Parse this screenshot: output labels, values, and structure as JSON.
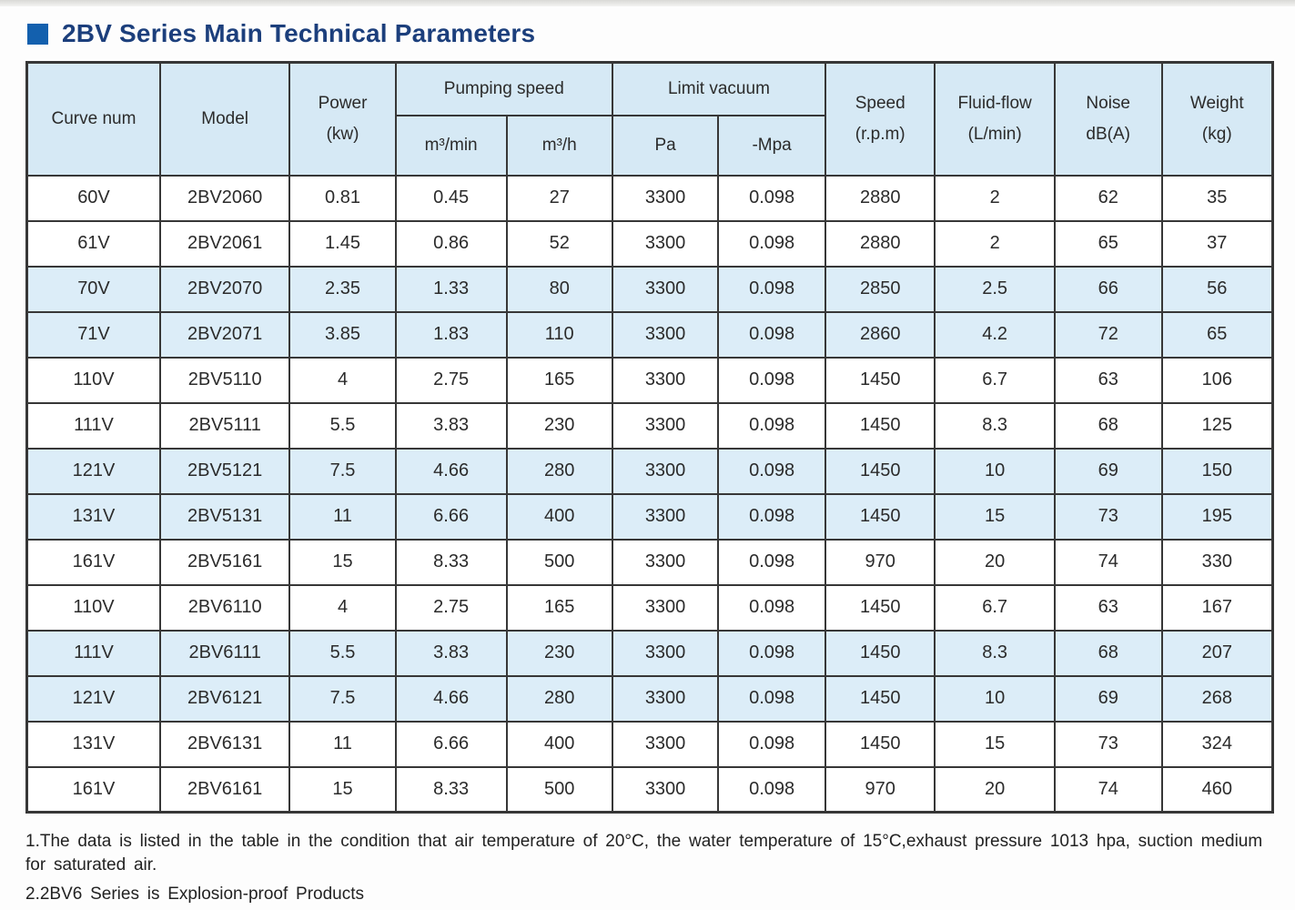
{
  "page": {
    "title": "2BV Series Main Technical Parameters"
  },
  "colors": {
    "title_text": "#1c3f7c",
    "title_bullet": "#1360ae",
    "header_bg": "#d6e9f5",
    "stripe_bg": "#dcedf8",
    "border": "#373737"
  },
  "table": {
    "header": {
      "curve_num": "Curve num",
      "model": "Model",
      "power_line1": "Power",
      "power_line2": "(kw)",
      "pumping_speed": "Pumping speed",
      "pumping_units": [
        "m³/min",
        "m³/h"
      ],
      "limit_vacuum": "Limit vacuum",
      "vacuum_units": [
        "Pa",
        "-Mpa"
      ],
      "speed_line1": "Speed",
      "speed_line2": "(r.p.m)",
      "fluid_line1": "Fluid-flow",
      "fluid_line2": "(L/min)",
      "noise_line1": "Noise",
      "noise_line2": "dB(A)",
      "weight_line1": "Weight",
      "weight_line2": "(kg)"
    },
    "rows": [
      [
        "60V",
        "2BV2060",
        "0.81",
        "0.45",
        "27",
        "3300",
        "0.098",
        "2880",
        "2",
        "62",
        "35"
      ],
      [
        "61V",
        "2BV2061",
        "1.45",
        "0.86",
        "52",
        "3300",
        "0.098",
        "2880",
        "2",
        "65",
        "37"
      ],
      [
        "70V",
        "2BV2070",
        "2.35",
        "1.33",
        "80",
        "3300",
        "0.098",
        "2850",
        "2.5",
        "66",
        "56"
      ],
      [
        "71V",
        "2BV2071",
        "3.85",
        "1.83",
        "110",
        "3300",
        "0.098",
        "2860",
        "4.2",
        "72",
        "65"
      ],
      [
        "110V",
        "2BV5110",
        "4",
        "2.75",
        "165",
        "3300",
        "0.098",
        "1450",
        "6.7",
        "63",
        "106"
      ],
      [
        "111V",
        "2BV5111",
        "5.5",
        "3.83",
        "230",
        "3300",
        "0.098",
        "1450",
        "8.3",
        "68",
        "125"
      ],
      [
        "121V",
        "2BV5121",
        "7.5",
        "4.66",
        "280",
        "3300",
        "0.098",
        "1450",
        "10",
        "69",
        "150"
      ],
      [
        "131V",
        "2BV5131",
        "11",
        "6.66",
        "400",
        "3300",
        "0.098",
        "1450",
        "15",
        "73",
        "195"
      ],
      [
        "161V",
        "2BV5161",
        "15",
        "8.33",
        "500",
        "3300",
        "0.098",
        "970",
        "20",
        "74",
        "330"
      ],
      [
        "110V",
        "2BV6110",
        "4",
        "2.75",
        "165",
        "3300",
        "0.098",
        "1450",
        "6.7",
        "63",
        "167"
      ],
      [
        "111V",
        "2BV6111",
        "5.5",
        "3.83",
        "230",
        "3300",
        "0.098",
        "1450",
        "8.3",
        "68",
        "207"
      ],
      [
        "121V",
        "2BV6121",
        "7.5",
        "4.66",
        "280",
        "3300",
        "0.098",
        "1450",
        "10",
        "69",
        "268"
      ],
      [
        "131V",
        "2BV6131",
        "11",
        "6.66",
        "400",
        "3300",
        "0.098",
        "1450",
        "15",
        "73",
        "324"
      ],
      [
        "161V",
        "2BV6161",
        "15",
        "8.33",
        "500",
        "3300",
        "0.098",
        "970",
        "20",
        "74",
        "460"
      ]
    ]
  },
  "notes": [
    "1.The data is listed in the table in the condition that air temperature of 20°C, the water temperature of 15°C,exhaust pressure 1013 hpa, suction medium for saturated air.",
    "2.2BV6 Series is Explosion-proof Products"
  ]
}
